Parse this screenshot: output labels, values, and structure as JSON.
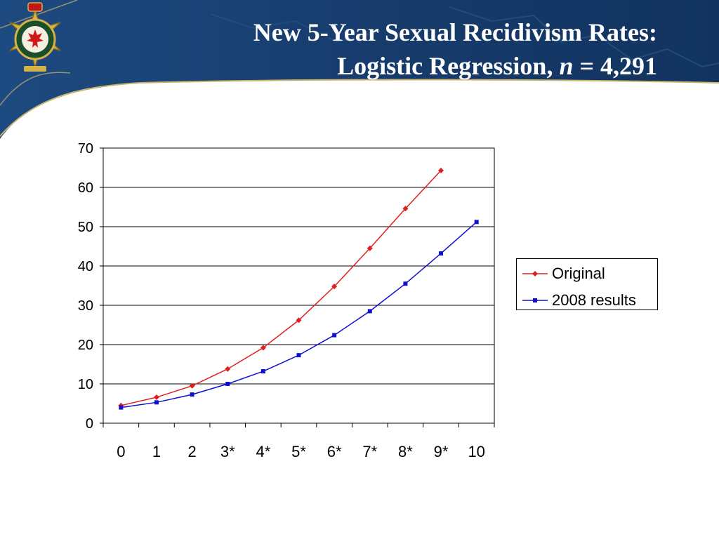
{
  "slide": {
    "title_line1": "New 5-Year Sexual Recidivism Rates:",
    "title_line2_prefix": "Logistic Regression, ",
    "title_line2_n": "n",
    "title_line2_suffix": " = 4,291",
    "logo_icon": "correctional-service-canada-badge-icon",
    "colors": {
      "header_bg": "#163a6c",
      "header_accent": "#c9b26a",
      "title_text": "#ffffff"
    }
  },
  "chart_data": {
    "type": "line",
    "title": "",
    "xlabel": "",
    "ylabel": "",
    "categories": [
      "0",
      "1",
      "2",
      "3*",
      "4*",
      "5*",
      "6*",
      "7*",
      "8*",
      "9*",
      "10"
    ],
    "ylim": [
      0,
      70
    ],
    "yticks": [
      0,
      10,
      20,
      30,
      40,
      50,
      60,
      70
    ],
    "grid": true,
    "legend_position": "right",
    "series": [
      {
        "name": "Original",
        "color": "#e02020",
        "marker": "diamond",
        "values": [
          4.5,
          6.6,
          9.5,
          13.8,
          19.2,
          26.2,
          34.8,
          44.5,
          54.6,
          64.3,
          null
        ]
      },
      {
        "name": "2008 results",
        "color": "#1010d0",
        "marker": "square",
        "values": [
          4.0,
          5.3,
          7.3,
          10.0,
          13.2,
          17.3,
          22.4,
          28.5,
          35.5,
          43.2,
          51.2
        ]
      }
    ]
  }
}
